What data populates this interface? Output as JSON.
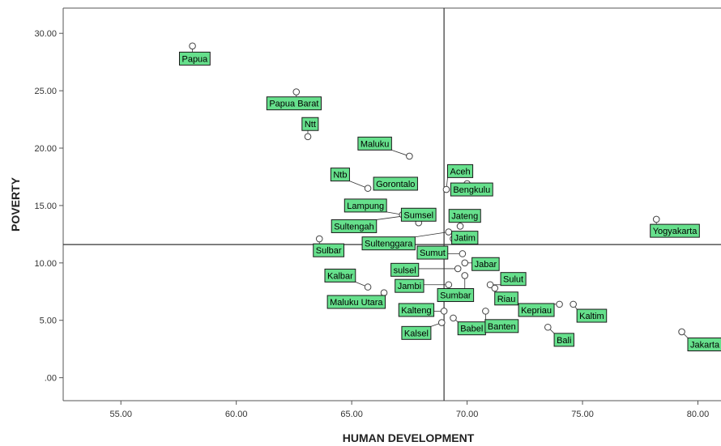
{
  "chart_data": {
    "type": "scatter",
    "xlabel": "HUMAN DEVELOPMENT",
    "ylabel": "POVERTY",
    "xlim": [
      52.5,
      81.0
    ],
    "ylim": [
      -2.0,
      32.2
    ],
    "x_ticks": [
      "55.00",
      "60.00",
      "65.00",
      "70.00",
      "75.00",
      "80.00"
    ],
    "x_tick_values": [
      55,
      60,
      65,
      70,
      75,
      80
    ],
    "y_ticks": [
      ".00",
      "5.00",
      "10.00",
      "15.00",
      "20.00",
      "25.00",
      "30.00"
    ],
    "y_tick_values": [
      0,
      5,
      10,
      15,
      20,
      25,
      30
    ],
    "reference_lines": {
      "x": 69.0,
      "y": 11.6
    },
    "grid": false,
    "colors": {
      "label_fill": "#66e08c",
      "label_border": "#1a1a1a",
      "point_stroke": "#444444"
    },
    "points": [
      {
        "label": "Papua",
        "x": 58.1,
        "y": 28.9,
        "lx": 58.2,
        "ly": 27.8
      },
      {
        "label": "Papua Barat",
        "x": 62.6,
        "y": 24.9,
        "lx": 62.5,
        "ly": 23.9
      },
      {
        "label": "Ntt",
        "x": 63.1,
        "y": 21.0,
        "lx": 63.2,
        "ly": 22.1
      },
      {
        "label": "Maluku",
        "x": 67.5,
        "y": 19.3,
        "lx": 66.0,
        "ly": 20.4
      },
      {
        "label": "Ntb",
        "x": 65.7,
        "y": 16.5,
        "lx": 64.5,
        "ly": 17.7
      },
      {
        "label": "Gorontalo",
        "x": 66.4,
        "y": 16.9,
        "lx": 66.9,
        "ly": 16.9
      },
      {
        "label": "Aceh",
        "x": 69.1,
        "y": 16.4,
        "lx": 69.7,
        "ly": 18.0
      },
      {
        "label": "Bengkulu",
        "x": 70.0,
        "y": 16.9,
        "lx": 70.2,
        "ly": 16.4
      },
      {
        "label": "Lampung",
        "x": 67.2,
        "y": 14.2,
        "lx": 65.6,
        "ly": 15.0
      },
      {
        "label": "Sumsel",
        "x": 67.9,
        "y": 13.5,
        "lx": 67.9,
        "ly": 14.2
      },
      {
        "label": "Jateng",
        "x": 69.7,
        "y": 13.2,
        "lx": 69.9,
        "ly": 14.1
      },
      {
        "label": "Sultengah",
        "x": 67.3,
        "y": 14.1,
        "lx": 65.1,
        "ly": 13.2
      },
      {
        "label": "Sultenggara",
        "x": 69.2,
        "y": 12.7,
        "lx": 66.6,
        "ly": 11.7
      },
      {
        "label": "Jatim",
        "x": 69.4,
        "y": 12.1,
        "lx": 69.9,
        "ly": 12.2
      },
      {
        "label": "Sumut",
        "x": 69.8,
        "y": 10.8,
        "lx": 68.5,
        "ly": 10.9
      },
      {
        "label": "Sulbar",
        "x": 63.6,
        "y": 12.1,
        "lx": 64.0,
        "ly": 11.1
      },
      {
        "label": "Yogyakarta",
        "x": 78.2,
        "y": 13.8,
        "lx": 79.0,
        "ly": 12.8
      },
      {
        "label": "sulsel",
        "x": 69.6,
        "y": 9.5,
        "lx": 67.3,
        "ly": 9.4
      },
      {
        "label": "Jabar",
        "x": 69.9,
        "y": 10.0,
        "lx": 70.8,
        "ly": 9.9
      },
      {
        "label": "Kalbar",
        "x": 65.7,
        "y": 7.9,
        "lx": 64.5,
        "ly": 8.9
      },
      {
        "label": "Jambi",
        "x": 69.2,
        "y": 8.1,
        "lx": 67.5,
        "ly": 8.0
      },
      {
        "label": "Sulut",
        "x": 71.0,
        "y": 8.1,
        "lx": 72.0,
        "ly": 8.6
      },
      {
        "label": "Sumbar",
        "x": 69.9,
        "y": 8.9,
        "lx": 69.5,
        "ly": 7.2
      },
      {
        "label": "Riau",
        "x": 71.2,
        "y": 7.8,
        "lx": 71.7,
        "ly": 6.9
      },
      {
        "label": "Maluku Utara",
        "x": 66.4,
        "y": 7.4,
        "lx": 65.2,
        "ly": 6.6
      },
      {
        "label": "Kepriau",
        "x": 74.0,
        "y": 6.4,
        "lx": 73.0,
        "ly": 5.9
      },
      {
        "label": "Kaltim",
        "x": 74.6,
        "y": 6.4,
        "lx": 75.4,
        "ly": 5.4
      },
      {
        "label": "Kalteng",
        "x": 69.0,
        "y": 5.8,
        "lx": 67.8,
        "ly": 5.9
      },
      {
        "label": "Babel",
        "x": 69.4,
        "y": 5.2,
        "lx": 70.2,
        "ly": 4.3
      },
      {
        "label": "Banten",
        "x": 70.8,
        "y": 5.8,
        "lx": 71.5,
        "ly": 4.5
      },
      {
        "label": "Kalsel",
        "x": 68.9,
        "y": 4.8,
        "lx": 67.8,
        "ly": 3.9
      },
      {
        "label": "Bali",
        "x": 73.5,
        "y": 4.4,
        "lx": 74.2,
        "ly": 3.3
      },
      {
        "label": "Jakarta",
        "x": 79.3,
        "y": 4.0,
        "lx": 80.3,
        "ly": 2.9
      }
    ]
  }
}
